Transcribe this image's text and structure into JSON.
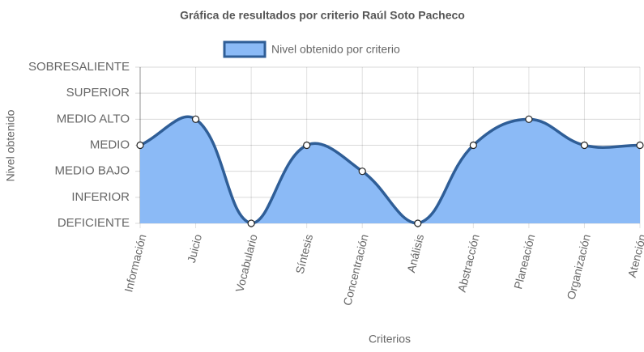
{
  "chart_data": {
    "type": "line",
    "title": "Gráfica de resultados por criterio Raúl Soto Pacheco",
    "x_label": "Criterios",
    "y_label": "Nivel obtenido",
    "categories": [
      "Información",
      "Juicio",
      "Vocabulario",
      "Síntesis",
      "Concentración",
      "Análisis",
      "Abstracción",
      "Planeación",
      "Organización",
      "Atención"
    ],
    "series": [
      {
        "name": "Nivel obtenido por criterio",
        "color": "#2f5e97",
        "fill": "#8bbaf6",
        "values": [
          3,
          4,
          0,
          3,
          2,
          0,
          3,
          4,
          3,
          3
        ]
      }
    ],
    "ylim": [
      0,
      6
    ],
    "yticks": [
      {
        "value": 0,
        "label": "DEFICIENTE"
      },
      {
        "value": 1,
        "label": "INFERIOR"
      },
      {
        "value": 2,
        "label": "MEDIO BAJO"
      },
      {
        "value": 3,
        "label": "MEDIO"
      },
      {
        "value": 4,
        "label": "MEDIO ALTO"
      },
      {
        "value": 5,
        "label": "SUPERIOR"
      },
      {
        "value": 6,
        "label": "SOBRESALIENTE"
      }
    ],
    "grid": true,
    "legend": "top"
  }
}
